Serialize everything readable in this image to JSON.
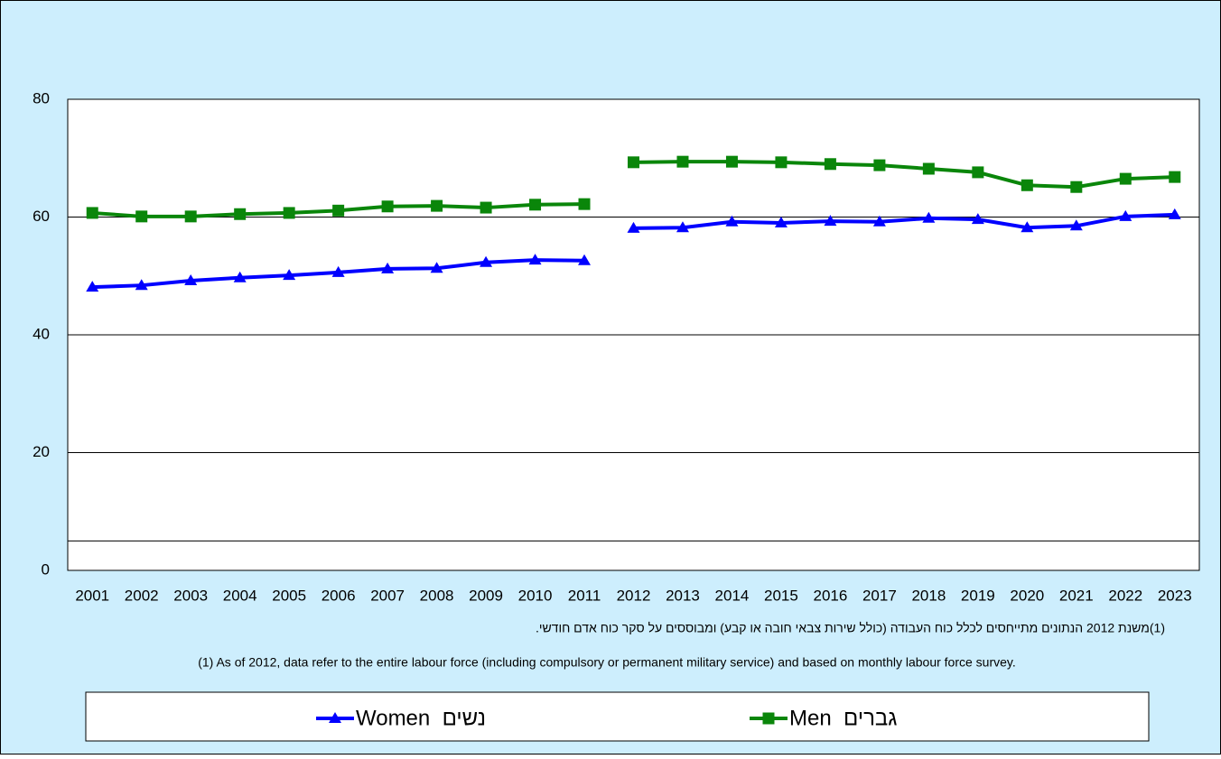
{
  "chart_data": {
    "type": "line",
    "categories": [
      "2001",
      "2002",
      "2003",
      "2004",
      "2005",
      "2006",
      "2007",
      "2008",
      "2009",
      "2010",
      "2011",
      "2012",
      "2013",
      "2014",
      "2015",
      "2016",
      "2017",
      "2018",
      "2019",
      "2020",
      "2021",
      "2022",
      "2023"
    ],
    "series": [
      {
        "name": "Women  נשים",
        "color": "#0000ff",
        "marker": "triangle",
        "values": [
          48.1,
          48.4,
          49.2,
          49.7,
          50.1,
          50.6,
          51.2,
          51.3,
          52.3,
          52.7,
          52.6,
          58.1,
          58.2,
          59.2,
          59.0,
          59.3,
          59.2,
          59.8,
          59.6,
          58.2,
          58.5,
          60.1,
          60.4
        ]
      },
      {
        "name": "Men  גברים",
        "color": "#0a860a",
        "marker": "square",
        "values": [
          60.7,
          60.1,
          60.1,
          60.5,
          60.7,
          61.1,
          61.8,
          61.9,
          61.6,
          62.1,
          62.2,
          69.3,
          69.4,
          69.4,
          69.3,
          69.0,
          68.8,
          68.2,
          67.6,
          65.4,
          65.1,
          66.5,
          66.8
        ]
      }
    ],
    "break_before_index": 11,
    "ylim": [
      0,
      80
    ],
    "yticks": [
      0,
      20,
      40,
      60,
      80
    ],
    "grid": true,
    "reference_lines": [
      5
    ],
    "footnote_he": "(1)משנת 2012 הנתונים מתייחסים לכלל כוח העבודה (כולל שירות צבאי חובה או קבע) ומבוססים על סקר כוח אדם חודשי.",
    "footnote_en": "(1) As of 2012,  data refer to the entire labour force (including compulsory or permanent military service) and based on monthly labour force survey.",
    "legend": "bottom"
  }
}
